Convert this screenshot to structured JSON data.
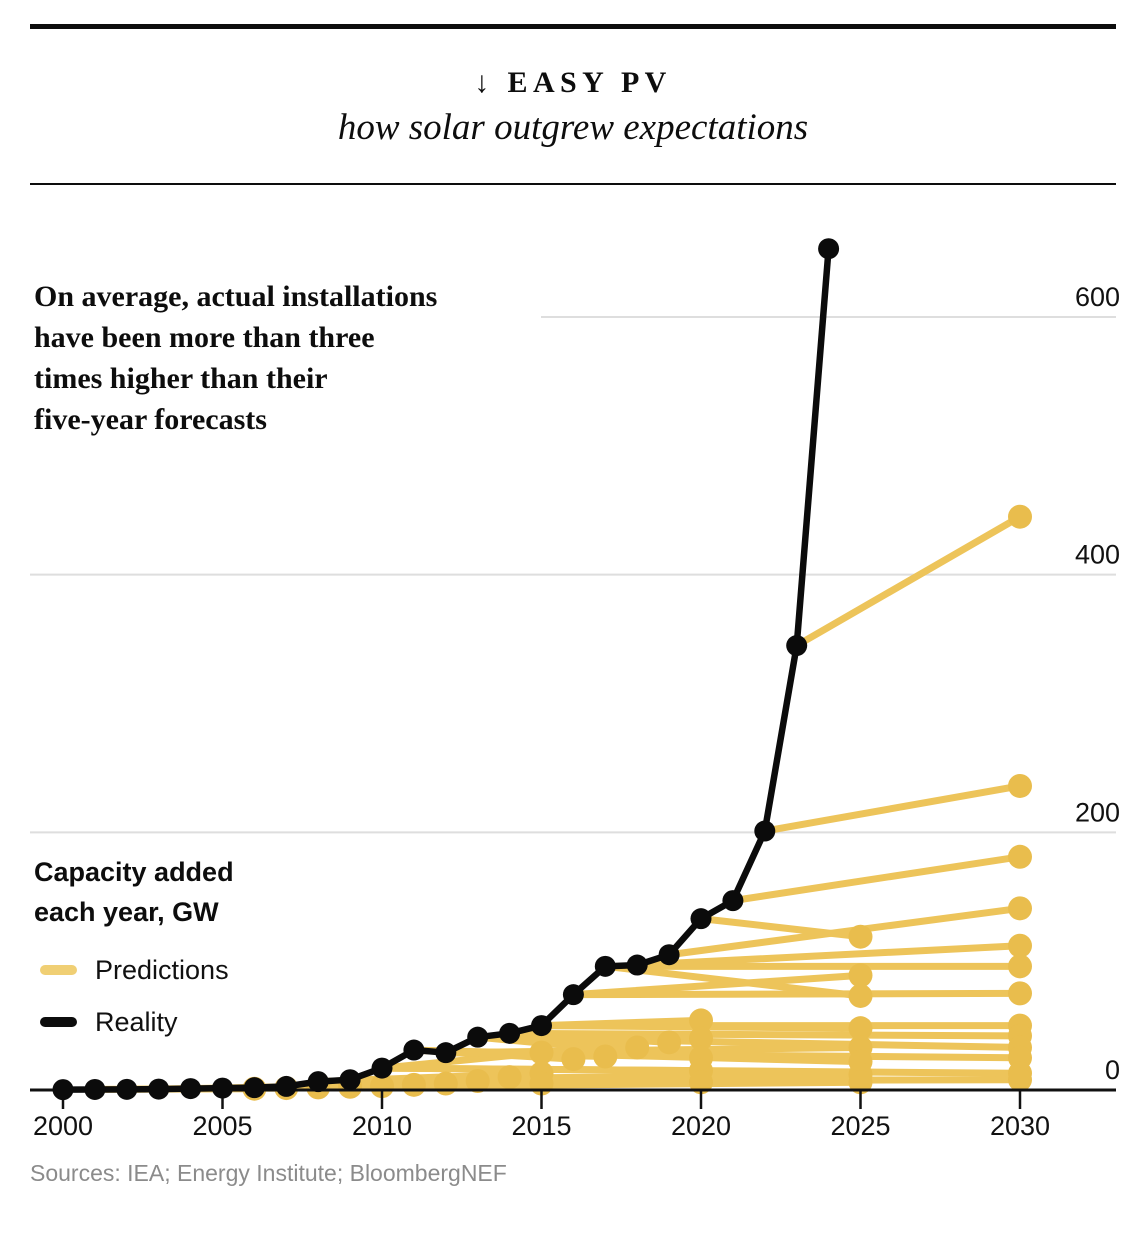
{
  "header": {
    "kicker": "↓ EASY PV",
    "subtitle": "how solar outgrew expectations"
  },
  "annotation": {
    "lines": [
      "On average, actual installations",
      "have been more than three",
      "times higher than their",
      "five-year forecasts"
    ]
  },
  "legend": {
    "title_line1": "Capacity added",
    "title_line2": "each year, GW",
    "items": [
      {
        "label": "Predictions",
        "swatch_color": "#f0cf74"
      },
      {
        "label": "Reality",
        "swatch_color": "#0d0d0d"
      }
    ]
  },
  "sources": "Sources: IEA; Energy Institute; BloombergNEF",
  "colors": {
    "prediction_line": "#edc45a",
    "prediction_dot": "#e9bd4d",
    "reality": "#0b0b0b",
    "gridline": "#dedede",
    "axis": "#111111",
    "tick_label": "#111111"
  },
  "chart_data": {
    "type": "line",
    "title": "Easy PV — how solar outgrew expectations",
    "ylabel": "Capacity added each year, GW",
    "unit": "GW",
    "grid": true,
    "legend_position": "left",
    "x_axis": {
      "ticks": [
        2000,
        2005,
        2010,
        2015,
        2020,
        2025,
        2030
      ],
      "range": [
        2000,
        2030
      ]
    },
    "y_axis": {
      "ticks": [
        0,
        200,
        400,
        600
      ],
      "range": [
        0,
        660
      ],
      "side": "right"
    },
    "series": [
      {
        "name": "Reality",
        "x": [
          2000,
          2001,
          2002,
          2003,
          2004,
          2005,
          2006,
          2007,
          2008,
          2009,
          2010,
          2011,
          2012,
          2013,
          2014,
          2015,
          2016,
          2017,
          2018,
          2019,
          2020,
          2021,
          2022,
          2023,
          2024
        ],
        "values": [
          0.3,
          0.4,
          0.5,
          0.7,
          1.1,
          1.5,
          1.8,
          2.8,
          6.5,
          8,
          17,
          31,
          29,
          41,
          44,
          50,
          74,
          96,
          97,
          105,
          133,
          147,
          201,
          345,
          653
        ]
      }
    ],
    "predictions": {
      "name": "Predictions",
      "note": "segments = [year_forecast_made, actual_value_that_year, forecast_target_year, forecast_value_GW]",
      "segments": [
        [
          2001,
          0.5,
          2006,
          1
        ],
        [
          2002,
          0.6,
          2007,
          1.5
        ],
        [
          2003,
          0.8,
          2008,
          2
        ],
        [
          2004,
          1.2,
          2009,
          2.5
        ],
        [
          2005,
          1.6,
          2010,
          3
        ],
        [
          2006,
          2,
          2011,
          4
        ],
        [
          2007,
          3,
          2012,
          5
        ],
        [
          2008,
          6.5,
          2013,
          7
        ],
        [
          2009,
          8,
          2014,
          10
        ],
        [
          2010,
          17,
          2015,
          29
        ],
        [
          2008,
          6.5,
          2015,
          13
        ],
        [
          2006,
          2,
          2015,
          5
        ],
        [
          2011,
          31,
          2016,
          24
        ],
        [
          2012,
          29,
          2017,
          26
        ],
        [
          2013,
          41,
          2018,
          33
        ],
        [
          2014,
          44,
          2019,
          37
        ],
        [
          2015,
          50,
          2020,
          54
        ],
        [
          2014,
          44,
          2020,
          40
        ],
        [
          2013,
          41,
          2020,
          25
        ],
        [
          2010,
          17,
          2020,
          15
        ],
        [
          2007,
          3,
          2020,
          6
        ],
        [
          2020,
          133,
          2025,
          119
        ],
        [
          2016,
          74,
          2025,
          89
        ],
        [
          2017,
          96,
          2025,
          73
        ],
        [
          2015,
          50,
          2025,
          48
        ],
        [
          2012,
          29,
          2025,
          33
        ],
        [
          2011,
          31,
          2025,
          22
        ],
        [
          2009,
          8,
          2025,
          12
        ],
        [
          2005,
          1.6,
          2025,
          6
        ],
        [
          2023,
          345,
          2030,
          445
        ],
        [
          2022,
          201,
          2030,
          236
        ],
        [
          2021,
          147,
          2030,
          181
        ],
        [
          2019,
          105,
          2030,
          141
        ],
        [
          2018,
          97,
          2030,
          112
        ],
        [
          2017,
          96,
          2030,
          96
        ],
        [
          2016,
          74,
          2030,
          75
        ],
        [
          2015,
          50,
          2030,
          50
        ],
        [
          2014,
          44,
          2030,
          42
        ],
        [
          2013,
          41,
          2030,
          33
        ],
        [
          2012,
          29,
          2030,
          25
        ],
        [
          2010,
          17,
          2030,
          13
        ],
        [
          2008,
          6.5,
          2030,
          8
        ]
      ]
    }
  }
}
